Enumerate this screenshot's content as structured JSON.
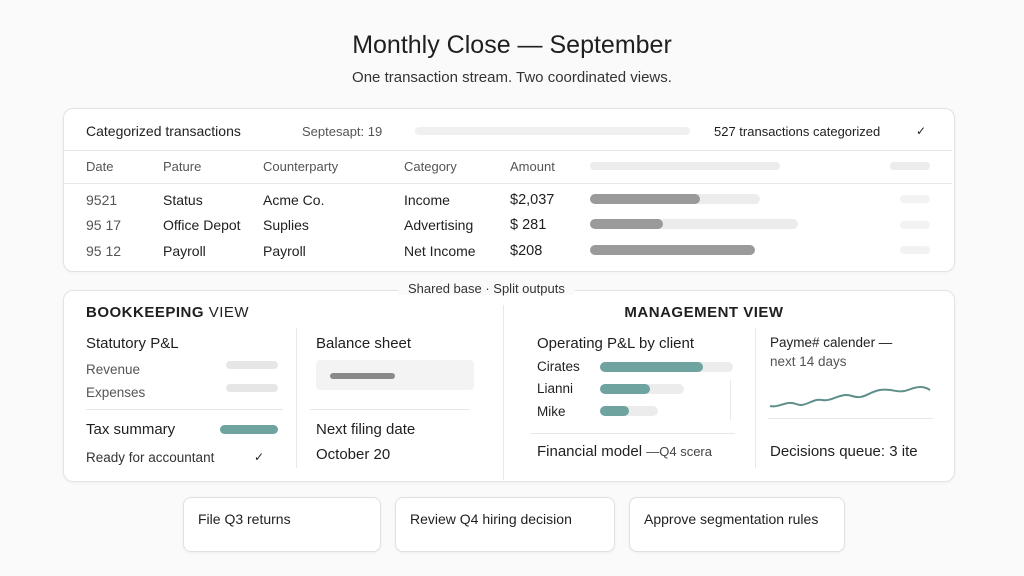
{
  "header": {
    "title": "Monthly Close — September",
    "subtitle": "One transaction stream. Two coordinated views."
  },
  "transactions": {
    "title": "Categorized transactions",
    "period": "Septesapt: 19",
    "status": "527 transactions categorized",
    "columns": [
      "Date",
      "Pature",
      "Counterparty",
      "Category",
      "Amount"
    ],
    "rows": [
      [
        "9521",
        "Status",
        "Acme Co.",
        "Income",
        "$2,037"
      ],
      [
        "95 17",
        "Office Depot",
        "Suplies",
        "Advertising",
        "$ 281"
      ],
      [
        "95 12",
        "Payroll",
        "Payroll",
        "Net Income",
        "$208"
      ]
    ]
  },
  "views": {
    "connector": "Shared base · Split outputs",
    "bookkeeping": {
      "title_strong": "BOOKKEEPING",
      "title_rest": "VIEW",
      "statutory": {
        "title": "Statutory P&L",
        "items": [
          "Revenue",
          "Expenses"
        ]
      },
      "tax": {
        "title": "Tax summary",
        "status": "Ready for accountant"
      },
      "balance_sheet": "Balance sheet",
      "filing": {
        "title": "Next filing date",
        "date": "October 20"
      }
    },
    "management": {
      "title": "MANAGEMENT VIEW",
      "operating": {
        "title": "Operating P&L by client",
        "clients": [
          "Cirates",
          "Lianni",
          "Mike"
        ]
      },
      "model": {
        "title": "Financial model",
        "note": "—Q4 scera"
      },
      "calendar": {
        "title": "Payme# calender —",
        "subtitle": "next 14 days"
      },
      "queue": "Decisions queue: 3 ite"
    }
  },
  "actions": [
    "File Q3 returns",
    "Review Q4 hiring decision",
    "Approve segmentation rules"
  ]
}
